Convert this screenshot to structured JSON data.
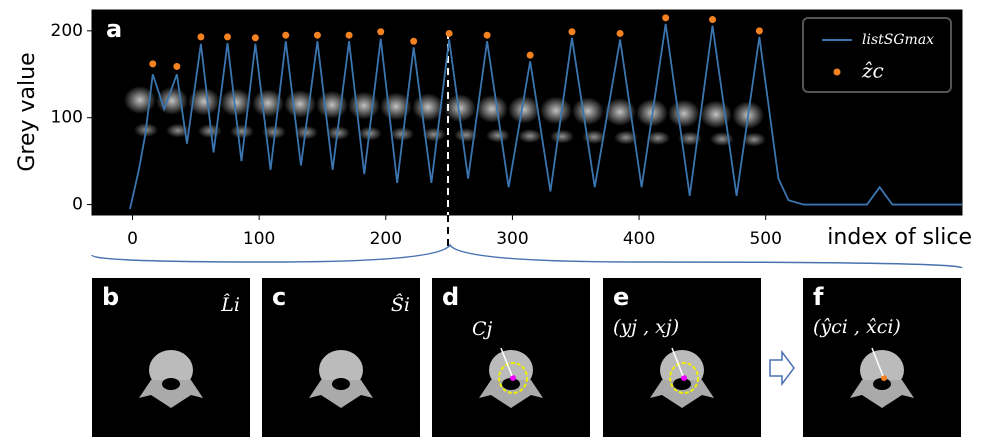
{
  "chart_data": {
    "type": "line",
    "panel_label": "a",
    "x_label": "index of slice",
    "y_label": "Grey value",
    "xlim": [
      -32,
      655
    ],
    "ylim": [
      -12,
      224
    ],
    "xticks": [
      0,
      100,
      200,
      300,
      400,
      500
    ],
    "yticks": [
      0,
      100,
      200
    ],
    "legend": "upper right",
    "series": [
      {
        "name": "listSGmax",
        "color": "#3b75af",
        "x": [
          -2,
          5,
          10,
          16,
          25,
          35,
          43,
          54,
          64,
          75,
          86,
          97,
          109,
          121,
          133,
          146,
          158,
          171,
          183,
          196,
          209,
          222,
          236,
          250,
          265,
          280,
          297,
          314,
          330,
          347,
          365,
          385,
          402,
          421,
          440,
          458,
          477,
          495,
          510,
          518,
          530,
          580,
          590,
          600,
          655
        ],
        "values": [
          -5,
          40,
          80,
          150,
          110,
          150,
          70,
          185,
          60,
          186,
          50,
          185,
          40,
          188,
          45,
          188,
          40,
          188,
          35,
          191,
          25,
          181,
          25,
          190,
          30,
          188,
          20,
          165,
          15,
          192,
          20,
          190,
          20,
          208,
          10,
          206,
          10,
          193,
          30,
          5,
          0,
          0,
          20,
          0,
          0
        ]
      },
      {
        "name": "ẑc",
        "type": "scatter",
        "color": "#f58220",
        "x": [
          16,
          35,
          54,
          75,
          97,
          121,
          146,
          171,
          196,
          222,
          250,
          280,
          314,
          347,
          385,
          421,
          458,
          495
        ],
        "values": [
          162,
          159,
          193,
          193,
          192,
          195,
          195,
          195,
          199,
          188,
          197,
          195,
          172,
          199,
          197,
          215,
          213,
          200
        ]
      }
    ]
  },
  "panels": [
    {
      "letter": "b",
      "label": "L̂i"
    },
    {
      "letter": "c",
      "label": "Ŝi"
    },
    {
      "letter": "d",
      "label": "Cj"
    },
    {
      "letter": "e",
      "label": "(yj , xj)"
    },
    {
      "letter": "f",
      "label": "(ŷci , x̂ci)"
    }
  ]
}
